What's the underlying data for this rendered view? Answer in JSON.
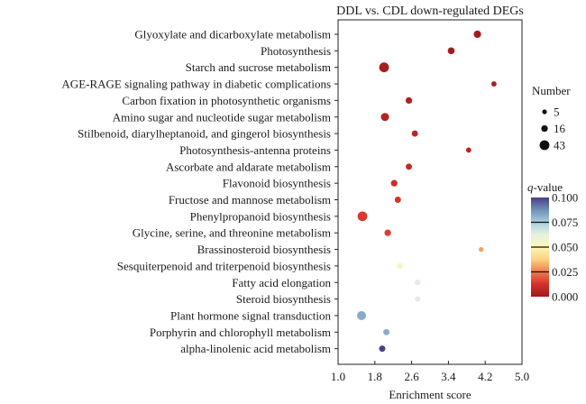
{
  "chart_data": {
    "type": "scatter",
    "title": "DDL vs. CDL down-regulated DEGs",
    "xlabel": "Enrichment score",
    "ylabel": "",
    "xlim": [
      1.0,
      5.0
    ],
    "xticks": [
      "1.0",
      "1.8",
      "2.6",
      "3.4",
      "4.2",
      "5.0"
    ],
    "xtick_values": [
      1.0,
      1.8,
      2.6,
      3.4,
      4.2,
      5.0
    ],
    "grid": false,
    "categories": [
      "Glyoxylate and dicarboxylate metabolism",
      "Photosynthesis",
      "Starch and sucrose metabolism",
      "AGE-RAGE signaling pathway in diabetic complications",
      "Carbon fixation in photosynthetic organisms",
      "Amino sugar and nucleotide sugar metabolism",
      "Stilbenoid, diarylheptanoid, and gingerol biosynthesis",
      "Photosynthesis-antenna proteins",
      "Ascorbate and aldarate metabolism",
      "Flavonoid biosynthesis",
      "Fructose and mannose metabolism",
      "Phenylpropanoid biosynthesis",
      "Glycine, serine, and threonine metabolism",
      "Brassinosteroid biosynthesis",
      "Sesquiterpenoid and triterpenoid biosynthesis",
      "Fatty acid elongation",
      "Steroid biosynthesis",
      "Plant hormone signal transduction",
      "Porphyrin and chlorophyll metabolism",
      "alpha-linolenic acid metabolism"
    ],
    "points": [
      {
        "term": "Glyoxylate and dicarboxylate metabolism",
        "enrichment": 4.03,
        "number": 22,
        "qvalue": 0.001
      },
      {
        "term": "Photosynthesis",
        "enrichment": 3.46,
        "number": 18,
        "qvalue": 0.001
      },
      {
        "term": "Starch and sucrose metabolism",
        "enrichment": 2.0,
        "number": 43,
        "qvalue": 0.002
      },
      {
        "term": "AGE-RAGE signaling pathway in diabetic complications",
        "enrichment": 4.39,
        "number": 8,
        "qvalue": 0.003
      },
      {
        "term": "Carbon fixation in photosynthetic organisms",
        "enrichment": 2.54,
        "number": 16,
        "qvalue": 0.004
      },
      {
        "term": "Amino sugar and nucleotide sugar metabolism",
        "enrichment": 2.02,
        "number": 28,
        "qvalue": 0.005
      },
      {
        "term": "Stilbenoid, diarylheptanoid, and gingerol biosynthesis",
        "enrichment": 2.67,
        "number": 14,
        "qvalue": 0.006
      },
      {
        "term": "Photosynthesis-antenna proteins",
        "enrichment": 3.84,
        "number": 8,
        "qvalue": 0.007
      },
      {
        "term": "Ascorbate and aldarate metabolism",
        "enrichment": 2.54,
        "number": 14,
        "qvalue": 0.008
      },
      {
        "term": "Flavonoid biosynthesis",
        "enrichment": 2.22,
        "number": 16,
        "qvalue": 0.01
      },
      {
        "term": "Fructose and mannose metabolism",
        "enrichment": 2.3,
        "number": 14,
        "qvalue": 0.013
      },
      {
        "term": "Phenylpropanoid biosynthesis",
        "enrichment": 1.53,
        "number": 43,
        "qvalue": 0.014
      },
      {
        "term": "Glycine, serine, and threonine metabolism",
        "enrichment": 2.08,
        "number": 16,
        "qvalue": 0.015
      },
      {
        "term": "Brassinosteroid biosynthesis",
        "enrichment": 4.11,
        "number": 5,
        "qvalue": 0.03
      },
      {
        "term": "Sesquiterpenoid and triterpenoid biosynthesis",
        "enrichment": 2.34,
        "number": 12,
        "qvalue": 0.052
      },
      {
        "term": "Fatty acid elongation",
        "enrichment": 2.73,
        "number": 10,
        "qvalue": 0.064
      },
      {
        "term": "Steroid biosynthesis",
        "enrichment": 2.73,
        "number": 10,
        "qvalue": 0.064
      },
      {
        "term": "Plant hormone signal transduction",
        "enrichment": 1.51,
        "number": 36,
        "qvalue": 0.082
      },
      {
        "term": "Porphyrin and chlorophyll metabolism",
        "enrichment": 2.05,
        "number": 14,
        "qvalue": 0.082
      },
      {
        "term": "alpha-linolenic acid metabolism",
        "enrichment": 1.96,
        "number": 14,
        "qvalue": 0.1
      }
    ],
    "size_legend": {
      "title": "Number",
      "values": [
        5,
        16,
        43
      ],
      "labels": [
        "5",
        "16",
        "43"
      ]
    },
    "color_legend": {
      "title_italic": "q",
      "title_rest": "-value",
      "range": [
        0.0,
        0.1
      ],
      "ticks": [
        0.1,
        0.075,
        0.05,
        0.025,
        0.0
      ],
      "tick_labels": [
        "0.100",
        "0.075",
        "0.050",
        "0.025",
        "0.000"
      ],
      "colormap": [
        "#9e1a1a",
        "#d7302a",
        "#ef7c4e",
        "#fbd27e",
        "#fdf6b5",
        "#e6f2e0",
        "#a9cfdb",
        "#6f90b5",
        "#4a3f8c"
      ],
      "placement": "right"
    },
    "legend_placement": "right"
  }
}
